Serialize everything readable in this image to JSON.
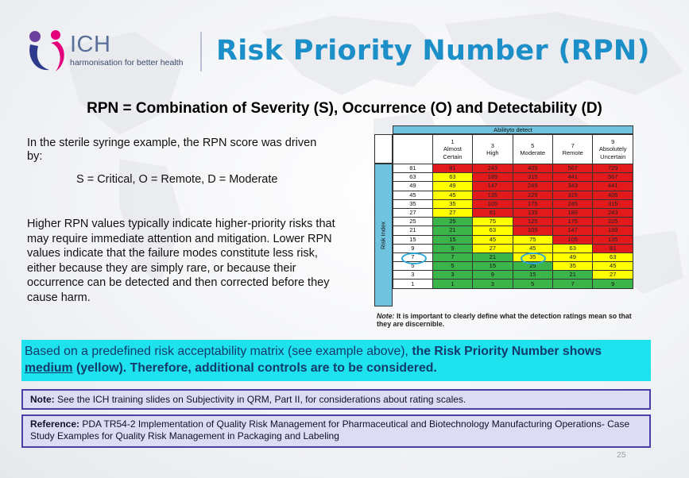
{
  "header": {
    "logo_text": "ICH",
    "logo_tagline": "harmonisation for better health",
    "title": "Risk Priority Number (RPN)"
  },
  "subtitle": "RPN = Combination of Severity (S), Occurrence (O) and Detectability (D)",
  "intro": "In the sterile syringe example, the RPN score was driven by:",
  "values": "S = Critical, O = Remote, D = Moderate",
  "explain": "Higher RPN values typically indicate higher-priority risks that may require immediate attention and mitigation. Lower RPN values indicate that the failure modes constitute less risk, either because they are simply rare, or because their occurrence can be detected and then corrected before they cause harm.",
  "matrix": {
    "detect_title": "Abilityto detect",
    "risk_index_label": "Risk Index",
    "columns": [
      [
        "1",
        "Almost",
        "Certain"
      ],
      [
        "3",
        "High",
        ""
      ],
      [
        "5",
        "Moderate",
        ""
      ],
      [
        "7",
        "Remote",
        ""
      ],
      [
        "9",
        "Absolutely",
        "Uncertain"
      ]
    ],
    "rows": [
      {
        "index": "81",
        "cells": [
          "81",
          "243",
          "405",
          "567",
          "729"
        ],
        "colors": [
          "red",
          "red",
          "red",
          "red",
          "red"
        ]
      },
      {
        "index": "63",
        "cells": [
          "63",
          "189",
          "315",
          "441",
          "567"
        ],
        "colors": [
          "yellow",
          "red",
          "red",
          "red",
          "red"
        ]
      },
      {
        "index": "49",
        "cells": [
          "49",
          "147",
          "245",
          "343",
          "441"
        ],
        "colors": [
          "yellow",
          "red",
          "red",
          "red",
          "red"
        ]
      },
      {
        "index": "45",
        "cells": [
          "45",
          "135",
          "225",
          "315",
          "405"
        ],
        "colors": [
          "yellow",
          "red",
          "red",
          "red",
          "red"
        ]
      },
      {
        "index": "35",
        "cells": [
          "35",
          "105",
          "175",
          "245",
          "315"
        ],
        "colors": [
          "yellow",
          "red",
          "red",
          "red",
          "red"
        ]
      },
      {
        "index": "27",
        "cells": [
          "27",
          "81",
          "135",
          "189",
          "243"
        ],
        "colors": [
          "yellow",
          "red",
          "red",
          "red",
          "red"
        ]
      },
      {
        "index": "25",
        "cells": [
          "25",
          "75",
          "125",
          "175",
          "225"
        ],
        "colors": [
          "green",
          "yellow",
          "red",
          "red",
          "red"
        ]
      },
      {
        "index": "21",
        "cells": [
          "21",
          "63",
          "105",
          "147",
          "189"
        ],
        "colors": [
          "green",
          "yellow",
          "red",
          "red",
          "red"
        ]
      },
      {
        "index": "15",
        "cells": [
          "15",
          "45",
          "75",
          "105",
          "135"
        ],
        "colors": [
          "green",
          "yellow",
          "yellow",
          "red",
          "red"
        ]
      },
      {
        "index": "9",
        "cells": [
          "9",
          "27",
          "45",
          "63",
          "81"
        ],
        "colors": [
          "green",
          "yellow",
          "yellow",
          "yellow",
          "red"
        ]
      },
      {
        "index": "7",
        "cells": [
          "7",
          "21",
          "35",
          "49",
          "63"
        ],
        "colors": [
          "green",
          "green",
          "yellow",
          "yellow",
          "yellow"
        ]
      },
      {
        "index": "5",
        "cells": [
          "5",
          "15",
          "25",
          "35",
          "45"
        ],
        "colors": [
          "green",
          "green",
          "green",
          "yellow",
          "yellow"
        ]
      },
      {
        "index": "3",
        "cells": [
          "3",
          "9",
          "15",
          "21",
          "27"
        ],
        "colors": [
          "green",
          "green",
          "green",
          "green",
          "yellow"
        ]
      },
      {
        "index": "1",
        "cells": [
          "1",
          "3",
          "5",
          "7",
          "9"
        ],
        "colors": [
          "green",
          "green",
          "green",
          "green",
          "green"
        ]
      }
    ],
    "color_map": {
      "red": "#e31a1c",
      "yellow": "#ffff00",
      "green": "#3bb54a"
    },
    "note_lead": "Note:",
    "note_text": "It is important to clearly define what the detection ratings mean so that they are discernible."
  },
  "highlight": {
    "part1": "Based on a predefined risk acceptability matrix (see example above), ",
    "part2": "the Risk Priority Number shows ",
    "part3": "medium",
    "part4": " (yellow). Therefore, additional controls are to be considered."
  },
  "note_bar": {
    "lead": "Note:",
    "text": " See the ICH training slides on Subjectivity in QRM, Part II, for considerations about rating scales."
  },
  "reference_bar": {
    "lead": "Reference:",
    "text": " PDA TR54-2 Implementation of Quality Risk Management for Pharmaceutical and Biotechnology Manufacturing Operations- Case Study Examples for Quality Risk Management in Packaging and Labeling"
  },
  "page_number": "25"
}
